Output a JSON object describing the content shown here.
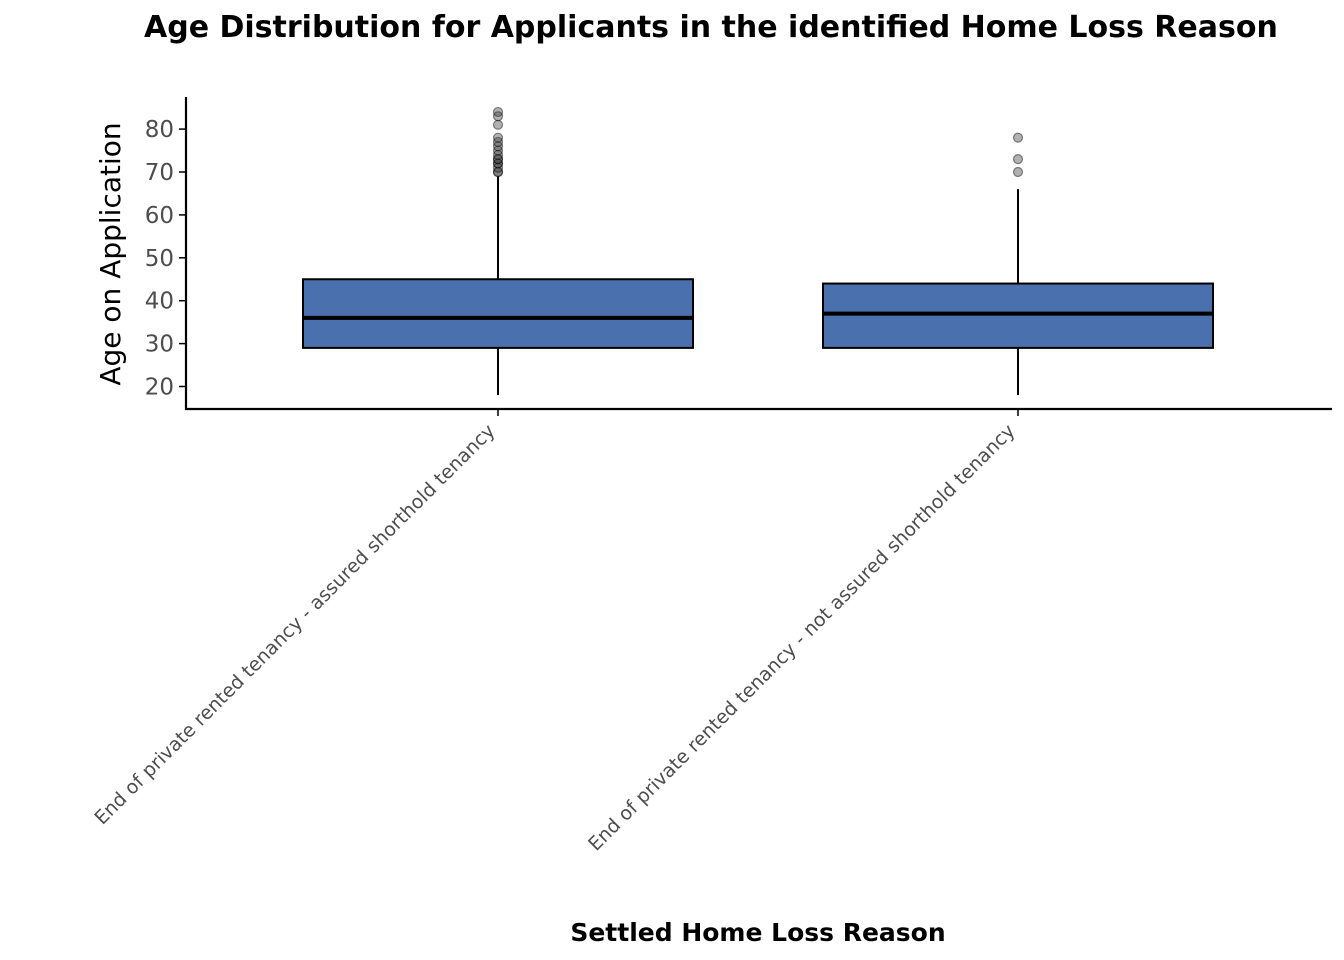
{
  "chart_data": {
    "type": "box",
    "title": "Age Distribution for Applicants in the identified Home Loss Reason",
    "xlabel": "Settled Home Loss Reason",
    "ylabel": "Age on Application",
    "ylim": [
      15,
      87
    ],
    "yticks": [
      20,
      30,
      40,
      50,
      60,
      70,
      80
    ],
    "grid": false,
    "box_color": "#4a70ad",
    "categories": [
      "End of private rented tenancy - assured shorthold tenancy",
      "End of private rented tenancy - not assured shorthold tenancy"
    ],
    "boxes": [
      {
        "whisker_low": 18,
        "q1": 29,
        "median": 36,
        "q3": 45,
        "whisker_high": 69,
        "outliers": [
          70,
          70,
          71,
          72,
          72,
          73,
          73,
          74,
          75,
          76,
          77,
          78,
          81,
          83,
          84
        ]
      },
      {
        "whisker_low": 18,
        "q1": 29,
        "median": 37,
        "q3": 44,
        "whisker_high": 66,
        "outliers": [
          70,
          73,
          78
        ]
      }
    ]
  }
}
